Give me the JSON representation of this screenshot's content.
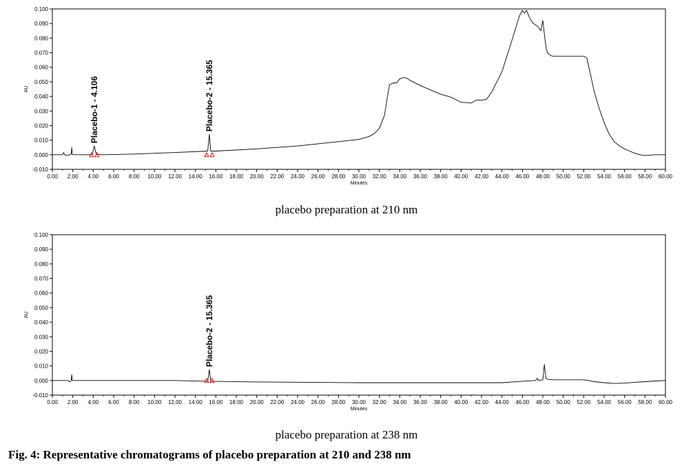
{
  "figure_caption": "Fig. 4: Representative chromatograms of placebo preparation at 210 and 238 nm",
  "chart_data": [
    {
      "type": "line",
      "title": "placebo preparation at 210 nm",
      "xlabel": "Minutes",
      "ylabel": "AU",
      "xlim": [
        0,
        60
      ],
      "ylim": [
        -0.01,
        0.1
      ],
      "x_ticks": [
        "0.00",
        "2.00",
        "4.00",
        "6.00",
        "8.00",
        "10.00",
        "12.00",
        "14.00",
        "16.00",
        "18.00",
        "20.00",
        "22.00",
        "24.00",
        "26.00",
        "28.00",
        "30.00",
        "32.00",
        "34.00",
        "36.00",
        "38.00",
        "40.00",
        "42.00",
        "44.00",
        "46.00",
        "48.00",
        "50.00",
        "52.00",
        "54.00",
        "56.00",
        "58.00",
        "60.00"
      ],
      "y_ticks": [
        "-0.010",
        "0.000",
        "0.010",
        "0.020",
        "0.030",
        "0.040",
        "0.050",
        "0.060",
        "0.070",
        "0.080",
        "0.090",
        "0.100"
      ],
      "series": [
        {
          "x": [
            0,
            1.0,
            1.1,
            1.2,
            1.4,
            1.7,
            1.85,
            1.9,
            1.95,
            2.1,
            3.0,
            3.9,
            4.1,
            4.3,
            5,
            8,
            12,
            15.2,
            15.365,
            15.5,
            16,
            20,
            24,
            28,
            30,
            31,
            31.5,
            32,
            32.5,
            32.8,
            33,
            33.3,
            33.7,
            34,
            34.3,
            34.7,
            35,
            36,
            37,
            38,
            39,
            40,
            41,
            41.5,
            42,
            42.5,
            43,
            44,
            45,
            45.7,
            46.0,
            46.2,
            46.4,
            46.7,
            47,
            47.5,
            47.8,
            48.0,
            48.1,
            48.2,
            48.35,
            48.5,
            48.8,
            49,
            49.5,
            50,
            51,
            52,
            52.3,
            52.7,
            53,
            53.5,
            54,
            54.5,
            55,
            55.5,
            56,
            56.5,
            57,
            57.5,
            58,
            59,
            60
          ],
          "y": [
            0.0,
            0.0,
            0.0015,
            0.0,
            -0.0005,
            0.0,
            0.0005,
            0.005,
            0.0003,
            0.0,
            0.0,
            0.0,
            0.006,
            0.0002,
            0.0,
            0.0005,
            0.0015,
            0.0025,
            0.014,
            0.0025,
            0.0025,
            0.004,
            0.006,
            0.009,
            0.0105,
            0.0125,
            0.0145,
            0.018,
            0.027,
            0.04,
            0.048,
            0.049,
            0.0495,
            0.052,
            0.053,
            0.0525,
            0.051,
            0.0475,
            0.0445,
            0.0415,
            0.0395,
            0.036,
            0.0355,
            0.0375,
            0.0375,
            0.038,
            0.043,
            0.057,
            0.079,
            0.095,
            0.099,
            0.097,
            0.099,
            0.094,
            0.0905,
            0.088,
            0.085,
            0.092,
            0.086,
            0.0795,
            0.072,
            0.0695,
            0.068,
            0.0675,
            0.0675,
            0.0675,
            0.0675,
            0.0675,
            0.0665,
            0.054,
            0.044,
            0.032,
            0.022,
            0.014,
            0.009,
            0.006,
            0.004,
            0.0025,
            0.001,
            0.0,
            -0.0005,
            0.0,
            0.0
          ]
        }
      ],
      "peaks": [
        {
          "label": "Placebo-1 - 4.106",
          "x": 4.106,
          "y": 0.006
        },
        {
          "label": "Placebo-2 - 15.365",
          "x": 15.365,
          "y": 0.014
        }
      ]
    },
    {
      "type": "line",
      "title": "placebo preparation at 238 nm",
      "xlabel": "Minutes",
      "ylabel": "AU",
      "xlim": [
        0,
        60
      ],
      "ylim": [
        -0.01,
        0.1
      ],
      "x_ticks": [
        "0.00",
        "2.00",
        "4.00",
        "6.00",
        "8.00",
        "10.00",
        "12.00",
        "14.00",
        "16.00",
        "18.00",
        "20.00",
        "22.00",
        "24.00",
        "26.00",
        "28.00",
        "30.00",
        "32.00",
        "34.00",
        "36.00",
        "38.00",
        "40.00",
        "42.00",
        "44.00",
        "46.00",
        "48.00",
        "50.00",
        "52.00",
        "54.00",
        "56.00",
        "58.00",
        "60.00"
      ],
      "y_ticks": [
        "-0.010",
        "0.000",
        "0.010",
        "0.020",
        "0.030",
        "0.040",
        "0.050",
        "0.060",
        "0.070",
        "0.080",
        "0.090",
        "0.100"
      ],
      "series": [
        {
          "x": [
            0,
            1.5,
            1.7,
            1.85,
            1.9,
            1.95,
            2.1,
            4,
            8,
            12,
            15.2,
            15.365,
            15.5,
            20,
            30,
            40,
            44,
            46,
            47.3,
            47.45,
            47.6,
            48.0,
            48.15,
            48.3,
            48.5,
            49,
            50,
            51,
            52,
            52.5,
            53,
            54,
            55,
            56,
            57,
            58,
            59,
            60
          ],
          "y": [
            0.0,
            0.0,
            -0.001,
            0.0,
            0.004,
            0.0,
            0.0,
            0.0,
            0.0,
            0.0,
            -0.0005,
            0.0075,
            -0.0005,
            -0.001,
            -0.0015,
            -0.0015,
            -0.0015,
            -0.0005,
            0.0,
            0.0015,
            0.0,
            0.0005,
            0.011,
            0.0015,
            0.0008,
            0.0005,
            0.0005,
            0.0005,
            0.0005,
            0.0,
            -0.0008,
            -0.0015,
            -0.002,
            -0.0018,
            -0.0012,
            -0.0008,
            -0.0003,
            0.0
          ]
        }
      ],
      "peaks": [
        {
          "label": "Placebo-2 - 15.365",
          "x": 15.365,
          "y": 0.0075
        }
      ]
    }
  ]
}
